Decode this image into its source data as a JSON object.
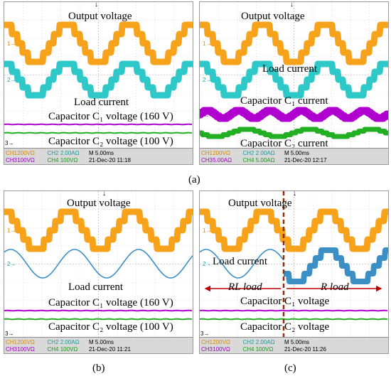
{
  "panels": [
    {
      "id": "a1",
      "labels": {
        "output": "Output voltage",
        "load": "Load current",
        "c1": "Capacitor C₁ voltage  (160 V)",
        "c2": "Capacitor C₂ voltage  (100 V)"
      },
      "status": {
        "ch1": "CH1",
        "ch1v": "200VΩ",
        "ch2": "CH2",
        "ch2v": "2.00AΩ",
        "time": "M 5.00ms",
        "ch3": "CH3",
        "ch3v": "100VΩ",
        "ch4": "CH4",
        "ch4v": "100VΩ",
        "date": "21-Dec-20 11:18"
      }
    },
    {
      "id": "a2",
      "labels": {
        "output": "Output voltage",
        "load": "Load current",
        "c1": "Capacitor C₁ current",
        "c2": "Capacitor C₂ current"
      },
      "status": {
        "ch1": "CH1",
        "ch1v": "200VΩ",
        "ch2": "CH2",
        "ch2v": "2.00AΩ",
        "time": "M 5.00ms",
        "ch3": "CH3",
        "ch3v": "5.00AΩ",
        "ch4": "CH4",
        "ch4v": "5.00AΩ",
        "date": "21-Dec-20 12:17"
      }
    },
    {
      "id": "b",
      "labels": {
        "output": "Output voltage",
        "load": "Load current",
        "c1": "Capacitor C₁ voltage  (160 V)",
        "c2": "Capacitor C₂ voltage  (100 V)"
      },
      "status": {
        "ch1": "CH1",
        "ch1v": "200VΩ",
        "ch2": "CH2",
        "ch2v": "2.00AΩ",
        "time": "M 5.00ms",
        "ch3": "CH3",
        "ch3v": "100VΩ",
        "ch4": "CH4",
        "ch4v": "100VΩ",
        "date": "21-Dec-20 11:21"
      }
    },
    {
      "id": "c",
      "labels": {
        "output": "Output voltage",
        "load": "Load current",
        "rl": "RL load",
        "r": "R load",
        "c1": "Capacitor C₁ voltage",
        "c2": "Capacitor C₂ voltage"
      },
      "status": {
        "ch1": "CH1",
        "ch1v": "200VΩ",
        "ch2": "CH2",
        "ch2v": "2.00AΩ",
        "time": "M 5.00ms",
        "ch3": "CH3",
        "ch3v": "100VΩ",
        "ch4": "CH4",
        "ch4v": "100VΩ",
        "date": "21-Dec-20 11:26"
      }
    }
  ],
  "captions": {
    "a": "(a)",
    "b": "(b)",
    "c": "(c)"
  },
  "markers": {
    "m1": "1→",
    "m2": "2→",
    "m3": "3→",
    "m4": "4→",
    "trigger": "↓"
  },
  "colors": {
    "ch1": "#f7a21b",
    "ch2": "#2ec8c8",
    "ch2_sine": "#3b8fc4",
    "ch3": "#b000d0",
    "ch4": "#22b022",
    "grid": "#c8c8c8",
    "status_bg": "#d9d9d9",
    "arrow": "#c00000",
    "dash": "#8b2b10"
  }
}
